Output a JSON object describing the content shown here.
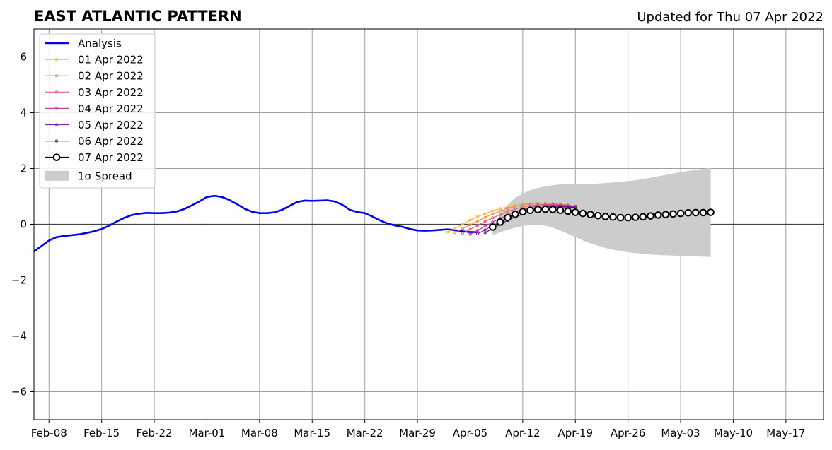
{
  "chart_data": {
    "type": "line",
    "title": "EAST ATLANTIC PATTERN",
    "subtitle": "Updated for Thu 07 Apr 2022",
    "xlabel": "",
    "ylabel": "",
    "ylim": [
      -7,
      7
    ],
    "xlim": [
      "2022-02-06",
      "2022-05-22"
    ],
    "grid": true,
    "legend_position": "top-left",
    "x_ticks": [
      "Feb-08",
      "Feb-15",
      "Feb-22",
      "Mar-01",
      "Mar-08",
      "Mar-15",
      "Mar-22",
      "Mar-29",
      "Apr-05",
      "Apr-12",
      "Apr-19",
      "Apr-26",
      "May-03",
      "May-10",
      "May-17"
    ],
    "y_ticks": [
      "−6",
      "−4",
      "−2",
      "0",
      "2",
      "4",
      "6"
    ],
    "y_tick_values": [
      -6,
      -4,
      -2,
      0,
      2,
      4,
      6
    ],
    "analysis": {
      "name": "Analysis",
      "color": "#0000ee",
      "dates": [
        "2022-02-06",
        "2022-02-07",
        "2022-02-08",
        "2022-02-09",
        "2022-02-10",
        "2022-02-11",
        "2022-02-12",
        "2022-02-13",
        "2022-02-14",
        "2022-02-15",
        "2022-02-16",
        "2022-02-17",
        "2022-02-18",
        "2022-02-19",
        "2022-02-20",
        "2022-02-21",
        "2022-02-22",
        "2022-02-23",
        "2022-02-24",
        "2022-02-25",
        "2022-02-26",
        "2022-02-27",
        "2022-02-28",
        "2022-03-01",
        "2022-03-02",
        "2022-03-03",
        "2022-03-04",
        "2022-03-05",
        "2022-03-06",
        "2022-03-07",
        "2022-03-08",
        "2022-03-09",
        "2022-03-10",
        "2022-03-11",
        "2022-03-12",
        "2022-03-13",
        "2022-03-14",
        "2022-03-15",
        "2022-03-16",
        "2022-03-17",
        "2022-03-18",
        "2022-03-19",
        "2022-03-20",
        "2022-03-21",
        "2022-03-22",
        "2022-03-23",
        "2022-03-24",
        "2022-03-25",
        "2022-03-26",
        "2022-03-27",
        "2022-03-28",
        "2022-03-29",
        "2022-03-30",
        "2022-03-31",
        "2022-04-01",
        "2022-04-02",
        "2022-04-03",
        "2022-04-04",
        "2022-04-05",
        "2022-04-06"
      ],
      "values": [
        -0.97,
        -0.78,
        -0.58,
        -0.46,
        -0.42,
        -0.39,
        -0.36,
        -0.31,
        -0.25,
        -0.17,
        -0.05,
        0.1,
        0.23,
        0.33,
        0.38,
        0.41,
        0.4,
        0.4,
        0.42,
        0.46,
        0.55,
        0.68,
        0.82,
        0.98,
        1.02,
        0.98,
        0.87,
        0.72,
        0.56,
        0.45,
        0.4,
        0.4,
        0.43,
        0.52,
        0.66,
        0.8,
        0.85,
        0.84,
        0.85,
        0.86,
        0.82,
        0.7,
        0.52,
        0.44,
        0.4,
        0.28,
        0.14,
        0.03,
        -0.04,
        -0.09,
        -0.17,
        -0.22,
        -0.23,
        -0.22,
        -0.2,
        -0.18,
        -0.21,
        -0.25,
        -0.28,
        -0.28
      ]
    },
    "forecasts": [
      {
        "name": "01 Apr 2022",
        "color": "#f8b838",
        "start": "2022-04-02",
        "values": [
          -0.28,
          -0.15,
          0.0,
          0.15,
          0.27,
          0.38,
          0.48,
          0.56,
          0.62,
          0.67,
          0.71,
          0.74,
          0.75,
          0.75,
          0.74,
          0.72,
          0.69,
          0.65
        ]
      },
      {
        "name": "02 Apr 2022",
        "color": "#f28c3c",
        "start": "2022-04-03",
        "values": [
          -0.3,
          -0.16,
          -0.02,
          0.12,
          0.25,
          0.37,
          0.48,
          0.57,
          0.64,
          0.7,
          0.73,
          0.75,
          0.75,
          0.74,
          0.72,
          0.69,
          0.65
        ]
      },
      {
        "name": "03 Apr 2022",
        "color": "#e0607a",
        "start": "2022-04-04",
        "values": [
          -0.32,
          -0.18,
          -0.04,
          0.1,
          0.23,
          0.35,
          0.46,
          0.55,
          0.62,
          0.67,
          0.7,
          0.71,
          0.71,
          0.7,
          0.68,
          0.65
        ]
      },
      {
        "name": "04 Apr 2022",
        "color": "#c04098",
        "start": "2022-04-05",
        "values": [
          -0.36,
          -0.22,
          -0.07,
          0.08,
          0.21,
          0.33,
          0.44,
          0.53,
          0.6,
          0.65,
          0.68,
          0.69,
          0.68,
          0.66,
          0.63
        ]
      },
      {
        "name": "05 Apr 2022",
        "color": "#8a1ea8",
        "start": "2022-04-06",
        "values": [
          -0.34,
          -0.2,
          -0.05,
          0.09,
          0.22,
          0.34,
          0.44,
          0.52,
          0.58,
          0.62,
          0.64,
          0.64,
          0.63,
          0.61
        ]
      },
      {
        "name": "06 Apr 2022",
        "color": "#48108c",
        "start": "2022-04-07",
        "values": [
          -0.3,
          -0.15,
          0.0,
          0.14,
          0.26,
          0.37,
          0.46,
          0.53,
          0.58,
          0.61,
          0.62,
          0.62,
          0.6
        ]
      }
    ],
    "latest": {
      "name": "07 Apr 2022",
      "color": "#000000",
      "start": "2022-04-08",
      "values": [
        -0.1,
        0.08,
        0.24,
        0.36,
        0.45,
        0.5,
        0.53,
        0.54,
        0.53,
        0.5,
        0.47,
        0.43,
        0.39,
        0.35,
        0.31,
        0.28,
        0.26,
        0.24,
        0.24,
        0.25,
        0.27,
        0.3,
        0.33,
        0.35,
        0.37,
        0.39,
        0.41,
        0.42,
        0.42,
        0.43
      ]
    },
    "spread": {
      "name": "1σ Spread",
      "color": "#cccccc",
      "start": "2022-04-08",
      "upper": [
        -0.1,
        0.35,
        0.7,
        0.95,
        1.1,
        1.22,
        1.3,
        1.36,
        1.4,
        1.43,
        1.44,
        1.44,
        1.44,
        1.45,
        1.46,
        1.48,
        1.5,
        1.52,
        1.55,
        1.58,
        1.62,
        1.67,
        1.72,
        1.77,
        1.82,
        1.87,
        1.91,
        1.95,
        1.99,
        2.02
      ],
      "lower": [
        -0.4,
        -0.28,
        -0.2,
        -0.12,
        -0.06,
        -0.03,
        -0.02,
        -0.05,
        -0.12,
        -0.22,
        -0.34,
        -0.46,
        -0.58,
        -0.68,
        -0.77,
        -0.85,
        -0.91,
        -0.96,
        -1.0,
        -1.03,
        -1.06,
        -1.08,
        -1.1,
        -1.11,
        -1.12,
        -1.13,
        -1.14,
        -1.15,
        -1.16,
        -1.17
      ]
    }
  }
}
